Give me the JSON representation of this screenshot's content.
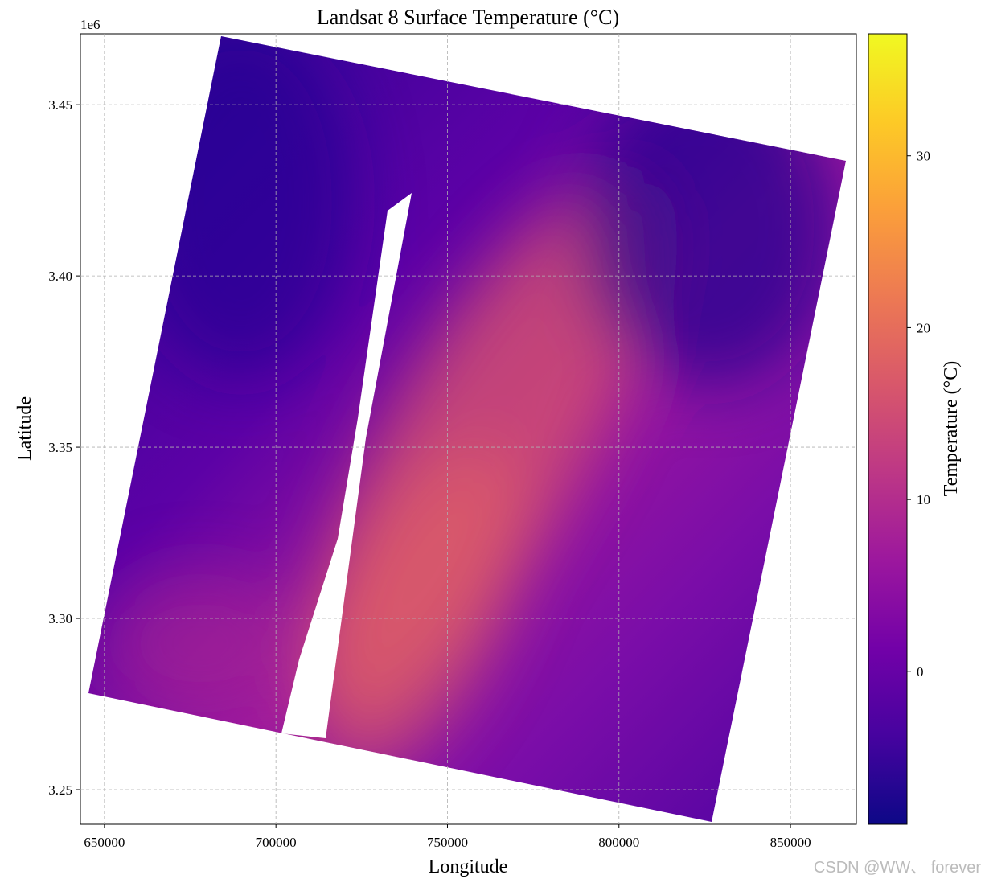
{
  "chart_data": {
    "type": "image",
    "title": "Landsat 8 Surface Temperature (°C)",
    "xlabel": "Longitude",
    "ylabel": "Latitude",
    "xlim": [
      643000,
      869200
    ],
    "ylim": [
      3239900,
      3470700
    ],
    "xticks": [
      650000,
      700000,
      750000,
      800000,
      850000
    ],
    "yticks": [
      {
        "value": 3250000,
        "label": "3.25"
      },
      {
        "value": 3300000,
        "label": "3.30"
      },
      {
        "value": 3350000,
        "label": "3.35"
      },
      {
        "value": 3400000,
        "label": "3.40"
      },
      {
        "value": 3450000,
        "label": "3.45"
      }
    ],
    "y_offset_label": "1e6",
    "grid": true,
    "colorbar": {
      "label": "Temperature (°C)",
      "lim": [
        -8.9,
        37.1
      ],
      "ticks": [
        0,
        10,
        20,
        30
      ],
      "colormap": "plasma"
    }
  },
  "watermark": "CSDN @WW、 forever"
}
